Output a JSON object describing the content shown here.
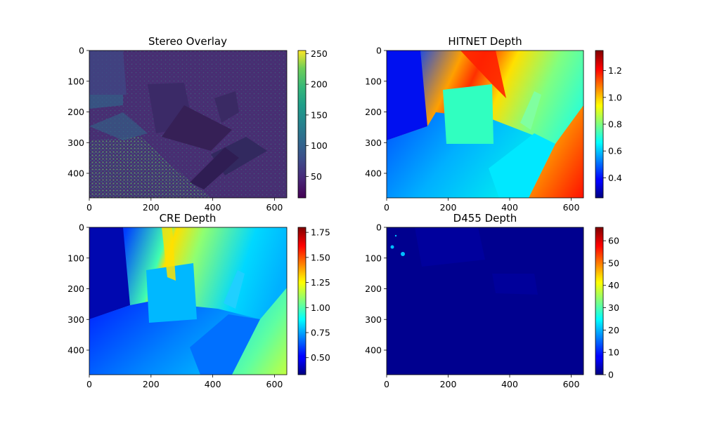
{
  "chart_data": [
    {
      "type": "heatmap",
      "title": "Stereo Overlay",
      "colormap": "viridis",
      "xlim": [
        0,
        640
      ],
      "ylim": [
        0,
        480
      ],
      "y_inverted": true,
      "x_ticks": [
        "0",
        "200",
        "400",
        "600"
      ],
      "y_ticks": [
        "0",
        "100",
        "200",
        "300",
        "400"
      ],
      "colorbar": {
        "min": 15,
        "max": 255,
        "ticks": [
          "50",
          "100",
          "150",
          "200",
          "250"
        ]
      }
    },
    {
      "type": "heatmap",
      "title": "HITNET Depth",
      "colormap": "jet",
      "xlim": [
        0,
        640
      ],
      "ylim": [
        0,
        480
      ],
      "y_inverted": true,
      "x_ticks": [
        "0",
        "200",
        "400",
        "600"
      ],
      "y_ticks": [
        "0",
        "100",
        "200",
        "300",
        "400"
      ],
      "colorbar": {
        "min": 0.25,
        "max": 1.35,
        "ticks": [
          "0.4",
          "0.6",
          "0.8",
          "1.0",
          "1.2"
        ]
      }
    },
    {
      "type": "heatmap",
      "title": "CRE Depth",
      "colormap": "jet",
      "xlim": [
        0,
        640
      ],
      "ylim": [
        0,
        480
      ],
      "y_inverted": true,
      "x_ticks": [
        "0",
        "200",
        "400",
        "600"
      ],
      "y_ticks": [
        "0",
        "100",
        "200",
        "300",
        "400"
      ],
      "colorbar": {
        "min": 0.33,
        "max": 1.8,
        "ticks": [
          "0.50",
          "0.75",
          "1.00",
          "1.25",
          "1.50",
          "1.75"
        ]
      }
    },
    {
      "type": "heatmap",
      "title": "D455 Depth",
      "colormap": "jet",
      "xlim": [
        0,
        640
      ],
      "ylim": [
        0,
        480
      ],
      "y_inverted": true,
      "x_ticks": [
        "0",
        "200",
        "400",
        "600"
      ],
      "y_ticks": [
        "0",
        "100",
        "200",
        "300",
        "400"
      ],
      "colorbar": {
        "min": 0,
        "max": 66,
        "ticks": [
          "0",
          "10",
          "20",
          "30",
          "40",
          "50",
          "60"
        ]
      }
    }
  ]
}
